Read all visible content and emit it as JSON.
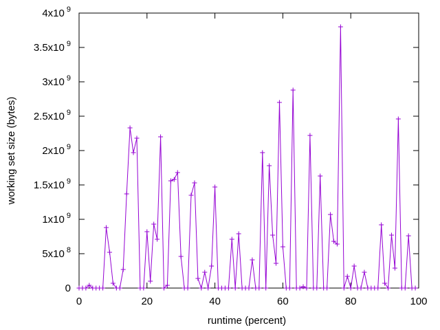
{
  "chart_data": {
    "type": "line",
    "xlabel": "runtime (percent)",
    "ylabel": "working set size (bytes)",
    "xlim": [
      0,
      100
    ],
    "ylim": [
      0,
      4000000000
    ],
    "grid": false,
    "legend": "none",
    "line_color": "#9400d3",
    "marker": "plus",
    "x_ticks": [
      {
        "value": 0,
        "label": "0"
      },
      {
        "value": 20,
        "label": "20"
      },
      {
        "value": 40,
        "label": "40"
      },
      {
        "value": 60,
        "label": "60"
      },
      {
        "value": 80,
        "label": "80"
      },
      {
        "value": 100,
        "label": "100"
      }
    ],
    "y_ticks": [
      {
        "value": 0,
        "label": "0",
        "exp": ""
      },
      {
        "value": 500000000,
        "label": "5x10",
        "exp": "8"
      },
      {
        "value": 1000000000,
        "label": "1x10",
        "exp": "9"
      },
      {
        "value": 1500000000,
        "label": "1.5x10",
        "exp": "9"
      },
      {
        "value": 2000000000,
        "label": "2x10",
        "exp": "9"
      },
      {
        "value": 2500000000,
        "label": "2.5x10",
        "exp": "9"
      },
      {
        "value": 3000000000,
        "label": "3x10",
        "exp": "9"
      },
      {
        "value": 3500000000,
        "label": "3.5x10",
        "exp": "9"
      },
      {
        "value": 4000000000,
        "label": "4x10",
        "exp": "9"
      }
    ],
    "series": [
      {
        "x": [
          0,
          1,
          2,
          3,
          4,
          5,
          6,
          7,
          8,
          9,
          10,
          11,
          12,
          13,
          14,
          15,
          16,
          17,
          18,
          19,
          20,
          21,
          22,
          23,
          24,
          25,
          26,
          27,
          28,
          29,
          30,
          31,
          32,
          33,
          34,
          35,
          36,
          37,
          38,
          39,
          40,
          41,
          42,
          43,
          44,
          45,
          46,
          47,
          48,
          49,
          50,
          51,
          52,
          53,
          54,
          55,
          56,
          57,
          58,
          59,
          60,
          61,
          62,
          63,
          64,
          65,
          66,
          67,
          68,
          69,
          70,
          71,
          72,
          73,
          74,
          75,
          76,
          77,
          78,
          79,
          80,
          81,
          82,
          83,
          84,
          85,
          86,
          87,
          88,
          89,
          90,
          91,
          92,
          93,
          94,
          95,
          96,
          97,
          98,
          99
        ],
        "y": [
          0,
          0,
          0,
          40000000,
          0,
          0,
          0,
          0,
          880000000,
          520000000,
          70000000,
          0,
          0,
          270000000,
          1370000000,
          2330000000,
          1970000000,
          2180000000,
          0,
          0,
          820000000,
          100000000,
          930000000,
          710000000,
          2200000000,
          0,
          40000000,
          1560000000,
          1580000000,
          1680000000,
          460000000,
          0,
          0,
          1350000000,
          1530000000,
          140000000,
          0,
          230000000,
          0,
          320000000,
          1470000000,
          0,
          0,
          0,
          0,
          710000000,
          0,
          790000000,
          0,
          0,
          0,
          410000000,
          0,
          0,
          1970000000,
          0,
          1780000000,
          770000000,
          360000000,
          2700000000,
          600000000,
          0,
          0,
          2880000000,
          0,
          0,
          20000000,
          0,
          2220000000,
          0,
          0,
          1630000000,
          0,
          0,
          1070000000,
          680000000,
          640000000,
          3800000000,
          0,
          170000000,
          0,
          320000000,
          0,
          0,
          230000000,
          0,
          0,
          0,
          0,
          920000000,
          70000000,
          0,
          770000000,
          290000000,
          2460000000,
          0,
          0,
          760000000,
          0,
          0
        ]
      }
    ]
  }
}
